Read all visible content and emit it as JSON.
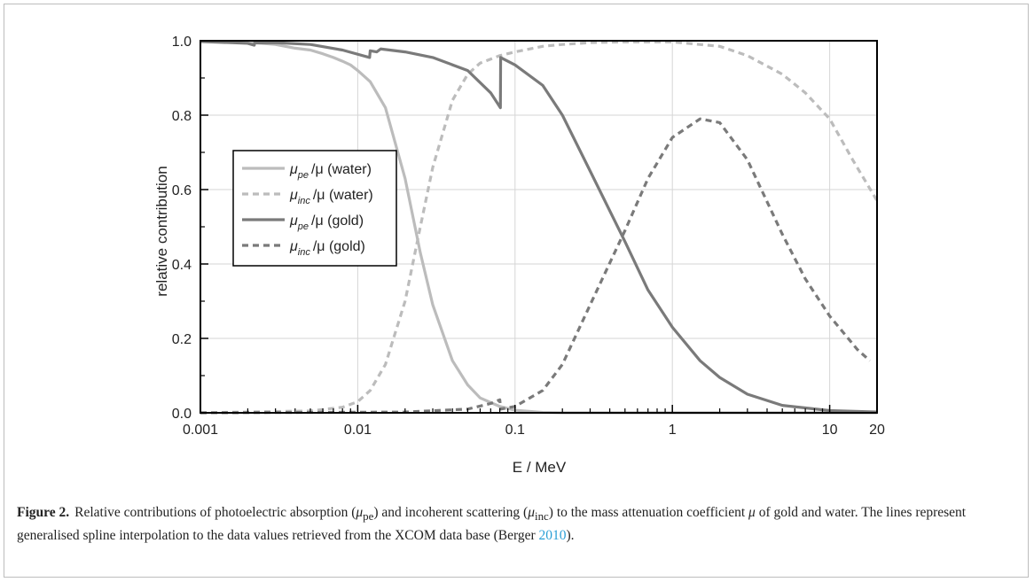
{
  "chart_data": {
    "type": "line",
    "xscale": "log",
    "xlim": [
      0.001,
      20
    ],
    "ylim": [
      0.0,
      1.0
    ],
    "xlabel": "E / MeV",
    "ylabel": "relative contribution",
    "xticks": [
      0.001,
      0.01,
      0.1,
      1,
      10,
      20
    ],
    "xtick_labels": [
      "0.001",
      "0.01",
      "0.1",
      "1",
      "10",
      "20"
    ],
    "yticks": [
      0.0,
      0.2,
      0.4,
      0.6,
      0.8,
      1.0
    ],
    "ytick_labels": [
      "0.0",
      "0.2",
      "0.4",
      "0.6",
      "0.8",
      "1.0"
    ],
    "grid": true,
    "legend_position": "middle-left",
    "series": [
      {
        "legend_symbol": "μ",
        "legend_sub": "pe",
        "legend_rest": "/μ (water)",
        "color": "#bcbcbc",
        "dash": "solid",
        "points": [
          [
            0.001,
            0.998
          ],
          [
            0.002,
            0.996
          ],
          [
            0.003,
            0.99
          ],
          [
            0.004,
            0.98
          ],
          [
            0.005,
            0.975
          ],
          [
            0.006,
            0.965
          ],
          [
            0.007,
            0.955
          ],
          [
            0.008,
            0.945
          ],
          [
            0.009,
            0.935
          ],
          [
            0.01,
            0.92
          ],
          [
            0.012,
            0.89
          ],
          [
            0.015,
            0.82
          ],
          [
            0.02,
            0.63
          ],
          [
            0.025,
            0.43
          ],
          [
            0.03,
            0.29
          ],
          [
            0.04,
            0.14
          ],
          [
            0.05,
            0.075
          ],
          [
            0.06,
            0.04
          ],
          [
            0.08,
            0.017
          ],
          [
            0.1,
            0.007
          ],
          [
            0.15,
            0.001
          ],
          [
            0.2,
            0.0
          ],
          [
            20,
            0.0
          ]
        ]
      },
      {
        "legend_symbol": "μ",
        "legend_sub": "inc",
        "legend_rest": "/μ (water)",
        "color": "#bcbcbc",
        "dash": "dashed",
        "points": [
          [
            0.001,
            0.0
          ],
          [
            0.005,
            0.005
          ],
          [
            0.008,
            0.015
          ],
          [
            0.01,
            0.03
          ],
          [
            0.012,
            0.06
          ],
          [
            0.015,
            0.13
          ],
          [
            0.02,
            0.3
          ],
          [
            0.025,
            0.5
          ],
          [
            0.03,
            0.66
          ],
          [
            0.04,
            0.84
          ],
          [
            0.05,
            0.91
          ],
          [
            0.06,
            0.94
          ],
          [
            0.08,
            0.96
          ],
          [
            0.1,
            0.97
          ],
          [
            0.15,
            0.985
          ],
          [
            0.2,
            0.99
          ],
          [
            0.3,
            0.995
          ],
          [
            0.5,
            0.997
          ],
          [
            1,
            0.997
          ],
          [
            2,
            0.985
          ],
          [
            3,
            0.96
          ],
          [
            5,
            0.91
          ],
          [
            7,
            0.86
          ],
          [
            10,
            0.79
          ],
          [
            14,
            0.68
          ],
          [
            20,
            0.57
          ]
        ]
      },
      {
        "legend_symbol": "μ",
        "legend_sub": "pe",
        "legend_rest": "/μ  (gold)",
        "color": "#7a7a7a",
        "dash": "solid",
        "points": [
          [
            0.001,
            0.998
          ],
          [
            0.002,
            0.993
          ],
          [
            0.0022,
            0.988
          ],
          [
            0.00221,
            0.994
          ],
          [
            0.003,
            0.995
          ],
          [
            0.005,
            0.99
          ],
          [
            0.008,
            0.975
          ],
          [
            0.0119,
            0.955
          ],
          [
            0.012,
            0.973
          ],
          [
            0.0132,
            0.97
          ],
          [
            0.014,
            0.978
          ],
          [
            0.02,
            0.97
          ],
          [
            0.03,
            0.955
          ],
          [
            0.05,
            0.92
          ],
          [
            0.07,
            0.86
          ],
          [
            0.0807,
            0.82
          ],
          [
            0.081,
            0.955
          ],
          [
            0.1,
            0.935
          ],
          [
            0.15,
            0.88
          ],
          [
            0.2,
            0.8
          ],
          [
            0.3,
            0.65
          ],
          [
            0.5,
            0.46
          ],
          [
            0.7,
            0.33
          ],
          [
            1,
            0.23
          ],
          [
            1.5,
            0.14
          ],
          [
            2,
            0.095
          ],
          [
            3,
            0.05
          ],
          [
            5,
            0.02
          ],
          [
            10,
            0.006
          ],
          [
            20,
            0.002
          ]
        ]
      },
      {
        "legend_symbol": "μ",
        "legend_sub": "inc",
        "legend_rest": "/μ (gold)",
        "color": "#7a7a7a",
        "dash": "dashed",
        "points": [
          [
            0.001,
            0.0
          ],
          [
            0.02,
            0.002
          ],
          [
            0.05,
            0.01
          ],
          [
            0.07,
            0.025
          ],
          [
            0.08,
            0.035
          ],
          [
            0.081,
            0.01
          ],
          [
            0.1,
            0.017
          ],
          [
            0.15,
            0.06
          ],
          [
            0.2,
            0.13
          ],
          [
            0.3,
            0.29
          ],
          [
            0.5,
            0.49
          ],
          [
            0.7,
            0.63
          ],
          [
            1,
            0.74
          ],
          [
            1.5,
            0.79
          ],
          [
            2,
            0.78
          ],
          [
            3,
            0.68
          ],
          [
            5,
            0.48
          ],
          [
            7,
            0.36
          ],
          [
            10,
            0.26
          ],
          [
            15,
            0.17
          ],
          [
            18,
            0.14
          ]
        ]
      }
    ]
  },
  "caption": {
    "figure_label": "Figure 2.",
    "text_1": "Relative contributions of photoelectric absorption (",
    "mu_1": "μ",
    "sub_1": "pe",
    "text_2": ") and incoherent scattering (",
    "mu_2": "μ",
    "sub_2": "inc",
    "text_3": ") to the mass attenuation coefficient ",
    "mu_3": "μ",
    "text_4": " of gold and water. The lines represent generalised spline interpolation to the data values retrieved from the XCOM data base (Berger ",
    "citation": "2010",
    "text_5": ")."
  }
}
